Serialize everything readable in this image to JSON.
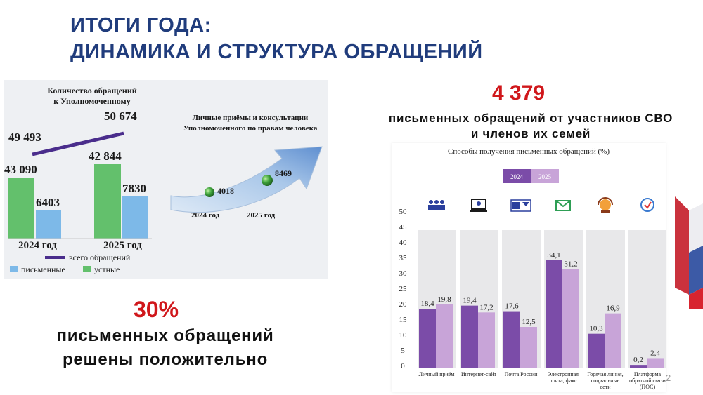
{
  "title": {
    "line1": "ИТОГИ ГОДА:",
    "line2": "ДИНАМИКА И СТРУКТУРА ОБРАЩЕНИЙ"
  },
  "left_chart": {
    "title_line1": "Количество обращений",
    "title_line2": "к Уполномоченному",
    "total_2024": "49 493",
    "total_2025": "50 674",
    "oral_2024": "43 090",
    "written_2024": "6403",
    "oral_2025": "42 844",
    "written_2025": "7830",
    "year_2024": "2024 год",
    "year_2025": "2025 год",
    "legend_total": "всего обращений",
    "legend_written": "письменные",
    "legend_oral": "устные",
    "colors": {
      "total": "#4a2d8c",
      "written": "#7db9e8",
      "oral": "#63c06c"
    }
  },
  "consultations": {
    "title_line1": "Личные приёмы и консультации",
    "title_line2": "Уполномоченного по правам человека",
    "value_2024": "4018",
    "value_2025": "8469",
    "year_2024": "2024 год",
    "year_2025": "2025 год"
  },
  "stat_svo": {
    "value": "4 379",
    "line1": "письменных обращений от участников СВО",
    "line2": "и членов их семей"
  },
  "stat_positive": {
    "value": "30%",
    "line1": "письменных обращений",
    "line2": "решены положительно"
  },
  "page_number": "2",
  "chart_data": [
    {
      "type": "bar",
      "title": "Количество обращений к Уполномоченному",
      "categories": [
        "2024 год",
        "2025 год"
      ],
      "series": [
        {
          "name": "всего обращений",
          "values": [
            49493,
            50674
          ]
        },
        {
          "name": "письменные",
          "values": [
            6403,
            7830
          ]
        },
        {
          "name": "устные",
          "values": [
            43090,
            42844
          ]
        }
      ]
    },
    {
      "type": "bar",
      "title": "Личные приёмы и консультации Уполномоченного по правам человека",
      "categories": [
        "2024 год",
        "2025 год"
      ],
      "values": [
        4018,
        8469
      ]
    },
    {
      "type": "bar",
      "title": "Способы получения письменных обращений (%)",
      "categories": [
        "Личный приём",
        "Интернет-сайт",
        "Почта России",
        "Электронная почта, факс",
        "Горячая линия, социальные сети",
        "Платформа обратной связи (ПОС)"
      ],
      "series": [
        {
          "name": "2024",
          "values": [
            18.4,
            19.4,
            17.6,
            34.1,
            10.3,
            0.2
          ],
          "labels": [
            "18,4",
            "19,4",
            "17,6",
            "34,1",
            "10,3",
            "0,2"
          ]
        },
        {
          "name": "2025",
          "values": [
            19.8,
            17.2,
            12.5,
            31.2,
            16.9,
            2.4
          ],
          "labels": [
            "19,8",
            "17,2",
            "12,5",
            "31,2",
            "16,9",
            "2,4"
          ]
        }
      ],
      "ylim": [
        0,
        50
      ],
      "yticks": [
        "0",
        "5",
        "10",
        "15",
        "20",
        "25",
        "30",
        "35",
        "40",
        "45",
        "50"
      ],
      "colors": {
        "2024": "#7b4ca8",
        "2025": "#c8a4d8",
        "background": "#e8e8ea"
      },
      "icons": [
        "people-meeting-icon",
        "computer-user-icon",
        "russian-post-icon",
        "email-icon",
        "headset-operator-icon",
        "feedback-platform-icon"
      ]
    }
  ]
}
